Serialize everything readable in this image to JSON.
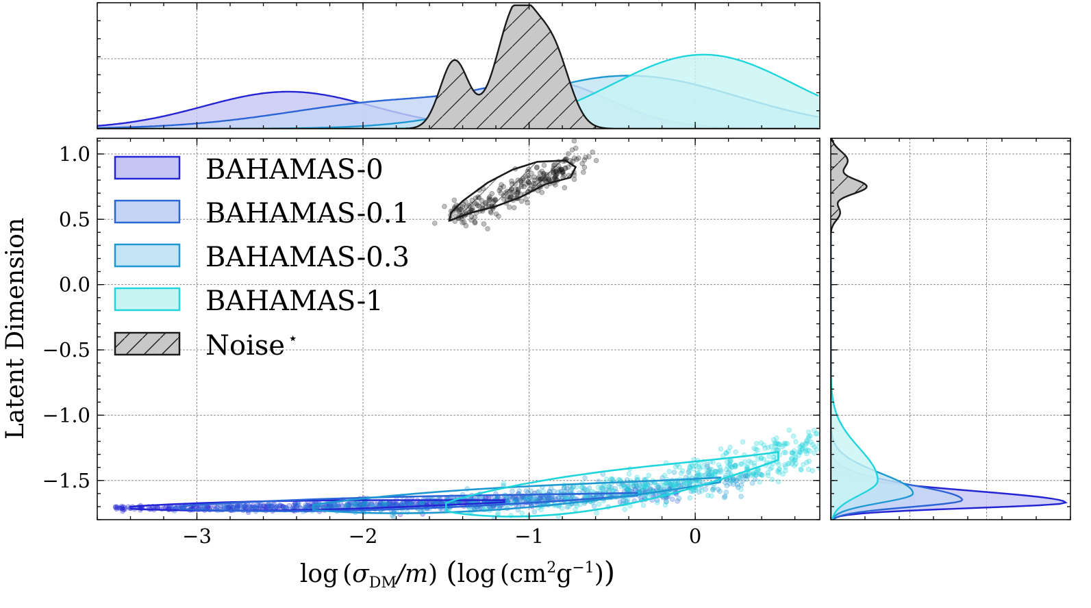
{
  "chart_data": {
    "type": "scatter",
    "xlabel": "log (σDM/m) (log (cm²g⁻¹))",
    "xlabel_parts": {
      "log1": "log",
      "open1": "(",
      "sigma": "σ",
      "sub": "DM",
      "over_m": "/m",
      "close1": ")",
      "open2": "(",
      "log2": "log",
      "open3": "(",
      "cm": "cm",
      "sup2": "2",
      "g": "g",
      "supm1": "−1",
      "close3": ")",
      "close2": ")"
    },
    "ylabel": "Latent Dimension",
    "xlim": [
      -3.6,
      0.75
    ],
    "ylim": [
      -1.8,
      1.12
    ],
    "x_ticks": [
      -3,
      -2,
      -1,
      0
    ],
    "x_tick_labels": [
      "−3",
      "−2",
      "−1",
      "0"
    ],
    "y_ticks": [
      1.0,
      0.5,
      0.0,
      -0.5,
      -1.0,
      -1.5
    ],
    "y_tick_labels": [
      "1.0",
      "0.5",
      "0.0",
      "−0.5",
      "−1.0",
      "−1.5"
    ],
    "grid": true,
    "legend_position": "upper-left",
    "series": [
      {
        "name": "BAHAMAS-0",
        "color": "#2424d4",
        "fill": "#c6c6f5",
        "x_range": [
          -3.5,
          -0.9
        ],
        "y_center": -1.69,
        "y_spread": 0.015,
        "x_marginal_peak": -2.45,
        "x_marginal_height": 0.3,
        "y_marginal_peak": -1.67,
        "y_marginal_height": 1.0
      },
      {
        "name": "BAHAMAS-0.1",
        "color": "#2a64d6",
        "fill": "#c4d4f4",
        "x_range": [
          -3.2,
          -0.1
        ],
        "y_center": -1.66,
        "y_spread": 0.02,
        "x_marginal_peak": -0.85,
        "x_marginal_height": 0.29,
        "y_marginal_peak": -1.65,
        "y_marginal_height": 0.56
      },
      {
        "name": "BAHAMAS-0.3",
        "color": "#1e98d2",
        "fill": "#c2e4f4",
        "x_range": [
          -2.4,
          0.4
        ],
        "y_center": -1.58,
        "y_spread": 0.035,
        "x_marginal_peak": -0.4,
        "x_marginal_height": 0.43,
        "y_marginal_peak": -1.6,
        "y_marginal_height": 0.35
      },
      {
        "name": "BAHAMAS-1",
        "color": "#1fd5dc",
        "fill": "#c8f4f4",
        "x_range": [
          -1.6,
          0.75
        ],
        "y_center": -1.38,
        "y_spread": 0.06,
        "x_marginal_peak": 0.05,
        "x_marginal_height": 0.6,
        "y_marginal_peak": -1.5,
        "y_marginal_height": 0.2
      },
      {
        "name": "Noise",
        "name_sup": "⋆",
        "color": "#1a1a1a",
        "fill": "#c8c8c8",
        "hatch": true,
        "x_range": [
          -1.5,
          -0.6
        ],
        "y_center": 0.7,
        "y_spread": 0.06,
        "x_marginal_peak": -1.1,
        "x_marginal_height": 1.0,
        "y_marginal_peak": 0.75,
        "y_marginal_height": 0.16
      }
    ]
  }
}
